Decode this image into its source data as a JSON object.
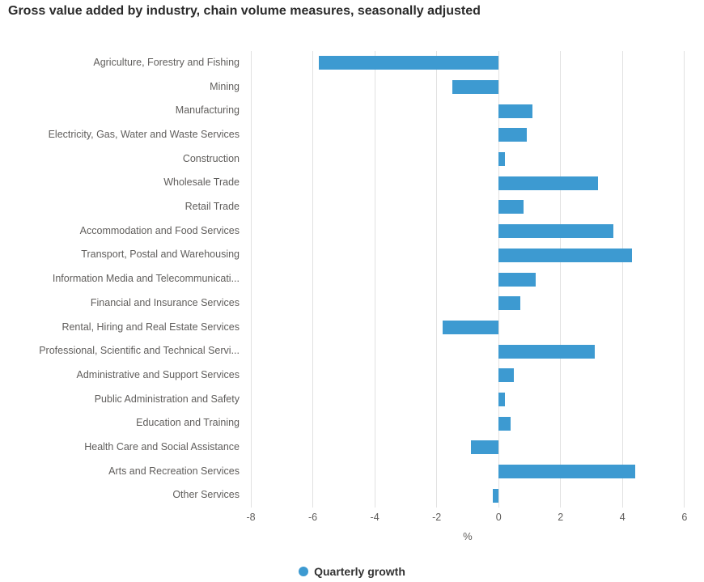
{
  "title": "Gross value added by industry, chain volume measures, seasonally adjusted",
  "legend": {
    "label": "Quarterly growth"
  },
  "colors": {
    "bar": "#3d9ad1",
    "grid": "#e1e1e1",
    "axis_text": "#605e5c",
    "title_text": "#2b2b2b",
    "legend_text": "#333333"
  },
  "chart_data": {
    "type": "bar",
    "orientation": "horizontal",
    "title": "Gross value added by industry, chain volume measures, seasonally adjusted",
    "xlabel": "%",
    "xlim": [
      -8,
      6.37
    ],
    "xticks": [
      -8,
      -6,
      -4,
      -2,
      0,
      2,
      4,
      6
    ],
    "grid": "vertical",
    "legend_position": "bottom-center",
    "categories": [
      "Agriculture, Forestry and Fishing",
      "Mining",
      "Manufacturing",
      "Electricity, Gas, Water and Waste Services",
      "Construction",
      "Wholesale Trade",
      "Retail Trade",
      "Accommodation and Food Services",
      "Transport, Postal and Warehousing",
      "Information Media and Telecommunicati...",
      "Financial and Insurance Services",
      "Rental, Hiring and Real Estate Services",
      "Professional, Scientific and Technical Servi...",
      "Administrative and Support Services",
      "Public Administration and Safety",
      "Education and Training",
      "Health Care and Social Assistance",
      "Arts and Recreation Services",
      "Other Services"
    ],
    "series": [
      {
        "name": "Quarterly growth",
        "values": [
          -5.8,
          -1.5,
          1.1,
          0.9,
          0.2,
          3.2,
          0.8,
          3.7,
          4.3,
          1.2,
          0.7,
          -1.8,
          3.1,
          0.5,
          0.2,
          0.4,
          -0.9,
          4.4,
          -0.2
        ]
      }
    ]
  }
}
